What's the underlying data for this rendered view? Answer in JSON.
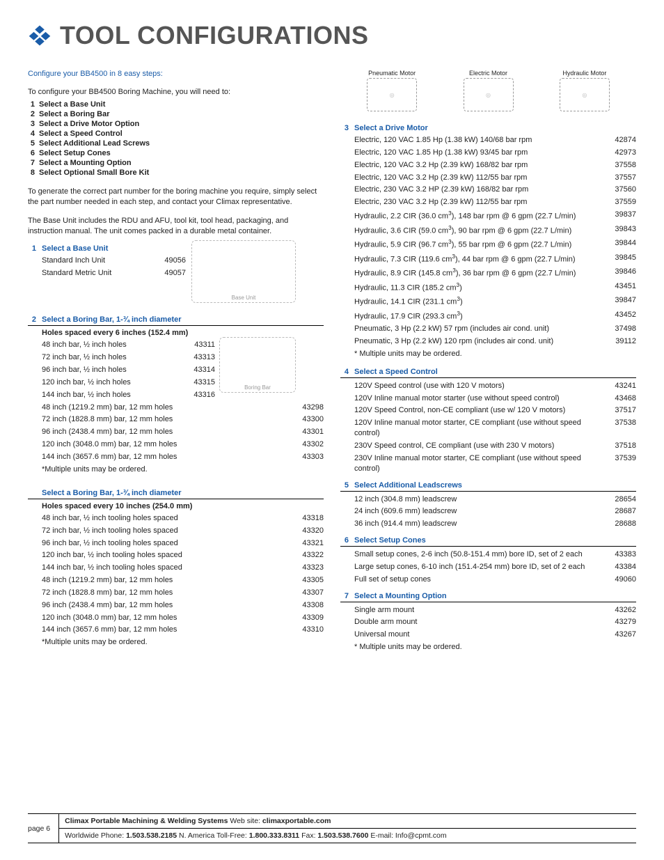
{
  "title": "TOOL CONFIGURATIONS",
  "intro": {
    "heading": "Configure your BB4500 in 8 easy steps:",
    "lead": "To configure your BB4500 Boring Machine, you will need to:",
    "steps": [
      "Select a Base Unit",
      "Select a Boring Bar",
      "Select a Drive Motor Option",
      "Select a Speed Control",
      "Select Additional Lead Screws",
      "Select Setup Cones",
      "Select a Mounting Option",
      "Select Optional Small Bore Kit"
    ],
    "p1": "To generate the correct part number for the boring machine you require, simply select the part number needed in each step, and contact your Climax representative.",
    "p2": "The Base Unit includes the RDU and AFU, tool kit, tool head, packaging, and instruction manual. The unit comes packed in a durable metal container."
  },
  "fig": {
    "base": "Base Unit",
    "bar": "Boring Bar",
    "pneu": "Pneumatic Motor",
    "elec": "Electric Motor",
    "hyd": "Hydraulic Motor"
  },
  "s1": {
    "num": "1",
    "title": "Select a Base Unit",
    "rows": [
      {
        "d": "Standard Inch Unit",
        "p": "49056"
      },
      {
        "d": "Standard Metric Unit",
        "p": "49057"
      }
    ]
  },
  "s2a": {
    "num": "2",
    "title": "Select a Boring Bar,  1-¾ inch diameter",
    "sub": "Holes spaced every 6 inches (152.4 mm)",
    "rows": [
      {
        "d": "48 inch bar, ½ inch holes",
        "p": "43311"
      },
      {
        "d": "72 inch bar, ½ inch holes",
        "p": "43313"
      },
      {
        "d": "96 inch bar, ½ inch holes",
        "p": "43314"
      },
      {
        "d": "120 inch bar, ½ inch holes",
        "p": "43315"
      },
      {
        "d": "144 inch bar, ½ inch holes",
        "p": "43316"
      },
      {
        "d": "48 inch (1219.2 mm) bar, 12 mm holes",
        "p": "43298"
      },
      {
        "d": "72 inch (1828.8 mm) bar, 12 mm holes",
        "p": "43300"
      },
      {
        "d": "96 inch (2438.4 mm) bar, 12 mm holes",
        "p": "43301"
      },
      {
        "d": "120 inch (3048.0 mm) bar, 12 mm holes",
        "p": "43302"
      },
      {
        "d": "144 inch (3657.6 mm) bar, 12 mm holes",
        "p": "43303"
      }
    ],
    "note": "*Multiple units may be ordered."
  },
  "s2b": {
    "title": "Select a Boring Bar, 1-¾ inch diameter",
    "sub": "Holes spaced every 10 inches (254.0 mm)",
    "rows": [
      {
        "d": "48 inch bar, ½ inch tooling holes spaced",
        "p": "43318"
      },
      {
        "d": "72 inch bar, ½ inch tooling holes spaced",
        "p": "43320"
      },
      {
        "d": "96 inch bar, ½ inch tooling holes spaced",
        "p": "43321"
      },
      {
        "d": "120 inch bar, ½ inch tooling holes spaced",
        "p": "43322"
      },
      {
        "d": "144 inch bar, ½ inch tooling holes spaced",
        "p": "43323"
      },
      {
        "d": "48 inch (1219.2 mm) bar, 12 mm holes",
        "p": "43305"
      },
      {
        "d": "72 inch (1828.8 mm) bar, 12 mm holes",
        "p": "43307"
      },
      {
        "d": "96 inch (2438.4 mm) bar, 12 mm holes",
        "p": "43308"
      },
      {
        "d": "120 inch (3048.0 mm) bar, 12 mm holes",
        "p": "43309"
      },
      {
        "d": "144 inch (3657.6 mm) bar, 12 mm holes",
        "p": "43310"
      }
    ],
    "note": "*Multiple units may be ordered."
  },
  "s3": {
    "num": "3",
    "title": "Select a Drive Motor",
    "rows": [
      {
        "d": "Electric, 120 VAC 1.85 Hp (1.38 kW) 140/68 bar rpm",
        "p": "42874"
      },
      {
        "d": "Electric, 120 VAC 1.85 Hp (1.38 kW) 93/45 bar rpm",
        "p": "42973"
      },
      {
        "d": "Electric, 120 VAC 3.2 Hp (2.39 kW) 168/82 bar rpm",
        "p": "37558"
      },
      {
        "d": "Electric, 120 VAC 3.2 Hp (2.39 kW) 112/55 bar rpm",
        "p": "37557"
      },
      {
        "d": "Electric, 230 VAC 3.2 HP (2.39 kW) 168/82 bar rpm",
        "p": "37560"
      },
      {
        "d": "Electric, 230 VAC 3.2 Hp (2.39 kW) 112/55 bar rpm",
        "p": "37559"
      },
      {
        "d": "Hydraulic, 2.2 CIR (36.0 cm³), 148 bar rpm @ 6 gpm (22.7 L/min)",
        "p": "39837"
      },
      {
        "d": "Hydraulic, 3.6 CIR (59.0 cm³), 90 bar rpm @ 6 gpm (22.7 L/min)",
        "p": "39843"
      },
      {
        "d": "Hydraulic, 5.9 CIR (96.7 cm³), 55 bar rpm @ 6 gpm (22.7 L/min)",
        "p": "39844"
      },
      {
        "d": "Hydraulic, 7.3 CIR (119.6 cm³), 44 bar rpm @ 6 gpm (22.7 L/min)",
        "p": "39845"
      },
      {
        "d": "Hydraulic, 8.9 CIR (145.8 cm³), 36 bar rpm @ 6 gpm (22.7 L/min)",
        "p": "39846"
      },
      {
        "d": "Hydraulic, 11.3 CIR (185.2 cm³)",
        "p": "43451"
      },
      {
        "d": "Hydraulic, 14.1 CIR (231.1 cm³)",
        "p": "39847"
      },
      {
        "d": "Hydraulic, 17.9 CIR (293.3 cm³)",
        "p": "43452"
      },
      {
        "d": "Pneumatic, 3 Hp (2.2 kW) 57 rpm (includes air cond. unit)",
        "p": "37498"
      },
      {
        "d": "Pneumatic, 3 Hp (2.2 kW) 120 rpm (includes air cond. unit)",
        "p": "39112"
      }
    ],
    "note": "* Multiple units may be ordered."
  },
  "s4": {
    "num": "4",
    "title": "Select a Speed Control",
    "rows": [
      {
        "d": "120V Speed control (use with 120 V motors)",
        "p": "43241"
      },
      {
        "d": "120V Inline manual motor starter (use without speed control)",
        "p": "43468"
      },
      {
        "d": "120V Speed Control, non-CE compliant (use w/ 120 V motors)",
        "p": "37517"
      },
      {
        "d": "120V Inline manual motor starter, CE compliant (use without speed control)",
        "p": "37538"
      },
      {
        "d": "230V Speed control, CE compliant (use with 230 V motors)",
        "p": "37518"
      },
      {
        "d": "230V Inline manual motor starter, CE compliant (use without speed control)",
        "p": "37539"
      }
    ]
  },
  "s5": {
    "num": "5",
    "title": "Select Additional Leadscrews",
    "rows": [
      {
        "d": "12 inch (304.8 mm) leadscrew",
        "p": "28654"
      },
      {
        "d": "24 inch (609.6 mm) leadscrew",
        "p": "28687"
      },
      {
        "d": "36 inch (914.4 mm) leadscrew",
        "p": "28688"
      }
    ]
  },
  "s6": {
    "num": "6",
    "title": "Select Setup Cones",
    "rows": [
      {
        "d": "Small setup cones, 2-6 inch (50.8-151.4 mm) bore ID, set of 2 each",
        "p": "43383"
      },
      {
        "d": "Large setup cones, 6-10 inch (151.4-254 mm) bore ID, set of 2 each",
        "p": "43384"
      },
      {
        "d": "Full set of setup cones",
        "p": "49060"
      }
    ]
  },
  "s7": {
    "num": "7",
    "title": "Select a Mounting Option",
    "rows": [
      {
        "d": "Single arm mount",
        "p": "43262"
      },
      {
        "d": "Double arm mount",
        "p": "43279"
      },
      {
        "d": "Universal mount",
        "p": "43267"
      }
    ],
    "note": "* Multiple units may be ordered."
  },
  "footer": {
    "page": "page 6",
    "l1a": "Climax Portable Machining & Welding Systems",
    "l1b": "  Web site: ",
    "l1c": "climaxportable.com",
    "l2a": "Worldwide Phone: ",
    "l2b": "1.503.538.2185",
    "l2c": "   N. America Toll-Free: ",
    "l2d": "1.800.333.8311",
    "l2e": "   Fax: ",
    "l2f": "1.503.538.7600",
    "l2g": "   E-mail: Info@cpmt.com"
  }
}
